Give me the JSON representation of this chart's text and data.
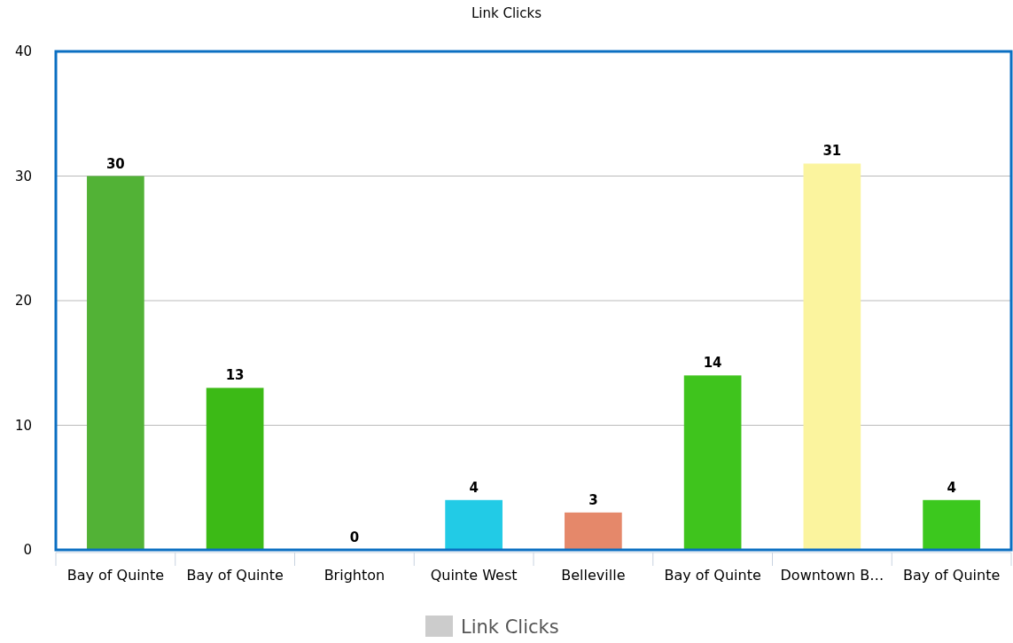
{
  "chart_data": {
    "type": "bar",
    "title": "Link Clicks",
    "categories": [
      "Bay of Quinte",
      "Bay of Quinte",
      "Brighton",
      "Quinte West",
      "Belleville",
      "Bay of Quinte",
      "Downtown B…",
      "Bay of Quinte"
    ],
    "series": [
      {
        "name": "Link Clicks",
        "color": "#cccccc",
        "colors": [
          "#52b236",
          "#3cba16",
          "#3cba16",
          "#22cbe6",
          "#e5886a",
          "#3fc41d",
          "#fbf49e",
          "#3cc81e"
        ],
        "values": [
          30,
          13,
          0,
          4,
          3,
          14,
          31,
          4
        ]
      }
    ],
    "ylim": [
      0,
      40
    ],
    "yticks": [
      0,
      10,
      20,
      30,
      40
    ],
    "grid": "y",
    "legend": "bottom",
    "data_labels": true
  }
}
